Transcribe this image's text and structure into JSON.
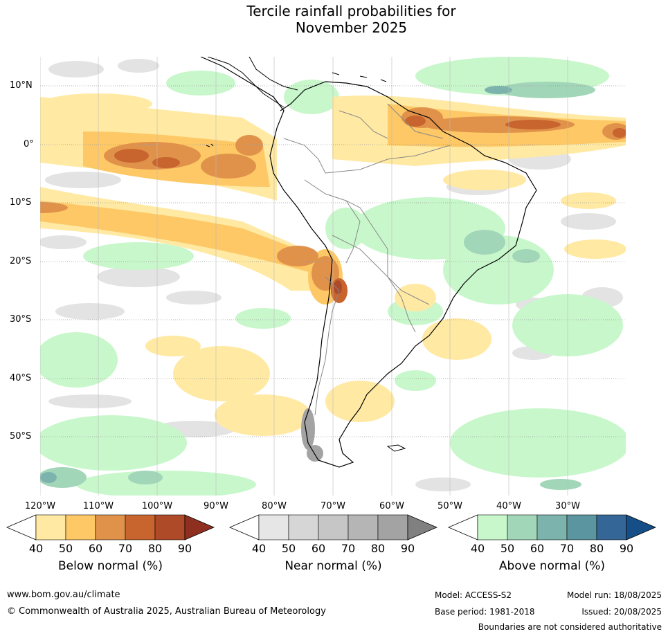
{
  "title_line1": "Tercile rainfall probabilities for",
  "title_line2": "November 2025",
  "lat_labels": [
    "10°N",
    "0°",
    "10°S",
    "20°S",
    "30°S",
    "40°S",
    "50°S"
  ],
  "lon_labels": [
    "120°W",
    "110°W",
    "100°W",
    "90°W",
    "80°W",
    "70°W",
    "60°W",
    "50°W",
    "40°W",
    "30°W"
  ],
  "legend_ticks": [
    "40",
    "50",
    "60",
    "70",
    "80",
    "90"
  ],
  "legends": [
    {
      "title": "Below normal (%)",
      "colors": [
        "#ffffff",
        "#ffe9a3",
        "#fdc865",
        "#e0924a",
        "#c8642e",
        "#ae4a28",
        "#8f2f1f"
      ]
    },
    {
      "title": "Near normal (%)",
      "colors": [
        "#ffffff",
        "#e6e6e6",
        "#d6d6d6",
        "#c6c6c6",
        "#b5b5b5",
        "#a3a3a3",
        "#808080"
      ]
    },
    {
      "title": "Above normal (%)",
      "colors": [
        "#ffffff",
        "#c8f7cb",
        "#a2d6b8",
        "#7db3ad",
        "#5a95a0",
        "#346698",
        "#164e87"
      ]
    }
  ],
  "footer": {
    "url": "www.bom.gov.au/climate",
    "copyright": "© Commonwealth of Australia 2025, Australian Bureau of Meteorology",
    "model": "Model: ACCESS-S2",
    "base_period": "Base period: 1981-2018",
    "model_run": "Model run: 18/08/2025",
    "issued": "Issued: 20/08/2025",
    "disclaimer": "Boundaries are not considered authoritative"
  }
}
